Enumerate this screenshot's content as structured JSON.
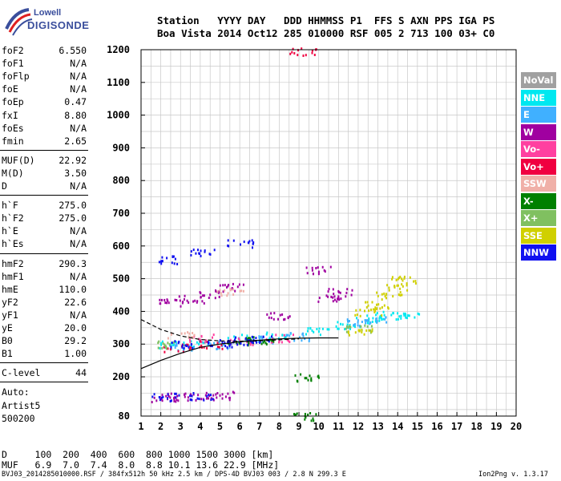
{
  "logo": {
    "line1": "Lowell",
    "line2": "DIGISONDE"
  },
  "header": {
    "row1": "Station   YYYY DAY   DDD HHMMSS P1  FFS S AXN PPS IGA PS",
    "row2": "Boa Vista 2014 Oct12 285 010000 RSF 005 2 713 100 03+ C0"
  },
  "params": [
    {
      "label": "foF2",
      "value": "6.550"
    },
    {
      "label": "foF1",
      "value": "N/A"
    },
    {
      "label": "foFlp",
      "value": "N/A"
    },
    {
      "label": "foE",
      "value": "N/A"
    },
    {
      "label": "foEp",
      "value": "0.47"
    },
    {
      "label": "fxI",
      "value": "8.80"
    },
    {
      "label": "foEs",
      "value": "N/A"
    },
    {
      "label": "fmin",
      "value": "2.65"
    },
    {
      "label": "MUF(D)",
      "value": "22.92"
    },
    {
      "label": "M(D)",
      "value": "3.50"
    },
    {
      "label": "D",
      "value": "N/A"
    },
    {
      "label": "h`F",
      "value": "275.0"
    },
    {
      "label": "h`F2",
      "value": "275.0"
    },
    {
      "label": "h`E",
      "value": "N/A"
    },
    {
      "label": "h`Es",
      "value": "N/A"
    },
    {
      "label": "hmF2",
      "value": "290.3"
    },
    {
      "label": "hmF1",
      "value": "N/A"
    },
    {
      "label": "hmE",
      "value": "110.0"
    },
    {
      "label": "yF2",
      "value": "22.6"
    },
    {
      "label": "yF1",
      "value": "N/A"
    },
    {
      "label": "yE",
      "value": "20.0"
    },
    {
      "label": "B0",
      "value": "29.2"
    },
    {
      "label": "B1",
      "value": "1.00"
    },
    {
      "label": "C-level",
      "value": "44"
    }
  ],
  "auto": {
    "line1": "Auto:",
    "line2": "Artist5",
    "line3": "500200"
  },
  "legend": [
    {
      "label": "NoVal",
      "color": "#a0a0a0"
    },
    {
      "label": "NNE",
      "color": "#00e8f0"
    },
    {
      "label": "E",
      "color": "#40b0ff"
    },
    {
      "label": "W",
      "color": "#a000a0"
    },
    {
      "label": "Vo-",
      "color": "#ff40a0"
    },
    {
      "label": "Vo+",
      "color": "#f00040"
    },
    {
      "label": "SSW",
      "color": "#f0b0a8"
    },
    {
      "label": "X-",
      "color": "#008000"
    },
    {
      "label": "X+",
      "color": "#80c060"
    },
    {
      "label": "SSE",
      "color": "#d0d000"
    },
    {
      "label": "NNW",
      "color": "#1010f0"
    }
  ],
  "bottom": {
    "d_row": "D     100  200  400  600  800 1000 1500 3000 [km]",
    "muf_row": "MUF   6.9  7.0  7.4  8.0  8.8 10.1 13.6 22.9 [MHz]",
    "footer_left": "BVJ03_2014285010000.RSF / 384fx512h 50 kHz 2.5 km / DPS-4D BVJ03 003 / 2.8 N 299.3 E",
    "footer_right": "Ion2Png v. 1.3.17"
  },
  "chart_data": {
    "type": "scatter",
    "title": "",
    "xlabel": "",
    "ylabel": "",
    "xlim": [
      1,
      20
    ],
    "ylim": [
      80,
      1200
    ],
    "x_ticks": [
      1,
      2,
      3,
      4,
      5,
      6,
      7,
      8,
      9,
      10,
      11,
      12,
      13,
      14,
      15,
      16,
      17,
      18,
      19,
      20
    ],
    "y_ticks": [
      80,
      200,
      300,
      400,
      500,
      600,
      700,
      800,
      900,
      1000,
      1100,
      1200
    ],
    "grid": true,
    "series": [
      {
        "name": "NNE",
        "color": "#00e8f0",
        "points": [
          [
            2.5,
            300
          ],
          [
            4,
            305
          ],
          [
            6,
            320
          ],
          [
            8,
            330
          ],
          [
            10,
            340
          ],
          [
            11.5,
            360
          ],
          [
            12.5,
            380
          ],
          [
            13.5,
            390
          ],
          [
            14.5,
            385
          ]
        ]
      },
      {
        "name": "E",
        "color": "#40b0ff",
        "points": [
          [
            3,
            295
          ],
          [
            5,
            300
          ],
          [
            7,
            315
          ],
          [
            9,
            325
          ],
          [
            12,
            370
          ],
          [
            13,
            375
          ]
        ]
      },
      {
        "name": "W",
        "color": "#a000a0",
        "points": [
          [
            2.2,
            138
          ],
          [
            3,
            140
          ],
          [
            4,
            142
          ],
          [
            5,
            145
          ],
          [
            2.5,
            430
          ],
          [
            3.5,
            440
          ],
          [
            4.5,
            455
          ],
          [
            5.5,
            475
          ],
          [
            8,
            390
          ],
          [
            10.5,
            440
          ],
          [
            11,
            460
          ],
          [
            10,
            530
          ]
        ]
      },
      {
        "name": "Vo-",
        "color": "#ff40a0",
        "points": [
          [
            4,
            320
          ],
          [
            6,
            310
          ],
          [
            8,
            320
          ]
        ]
      },
      {
        "name": "Vo+",
        "color": "#f00040",
        "points": [
          [
            2.8,
            290
          ],
          [
            4.5,
            300
          ],
          [
            9.2,
            1195
          ]
        ]
      },
      {
        "name": "SSW",
        "color": "#f0b0a8",
        "points": [
          [
            3,
            330
          ],
          [
            5.5,
            460
          ]
        ]
      },
      {
        "name": "X-",
        "color": "#008000",
        "points": [
          [
            9.3,
            200
          ],
          [
            9.3,
            80
          ],
          [
            6,
            310
          ],
          [
            7,
            315
          ]
        ]
      },
      {
        "name": "X+",
        "color": "#80c060",
        "points": [
          [
            2.5,
            300
          ],
          [
            12,
            350
          ]
        ]
      },
      {
        "name": "SSE",
        "color": "#d0d000",
        "points": [
          [
            12.5,
            400
          ],
          [
            13,
            420
          ],
          [
            13.5,
            450
          ],
          [
            14,
            480
          ],
          [
            14.2,
            500
          ],
          [
            12,
            340
          ]
        ]
      },
      {
        "name": "NNW",
        "color": "#1010f0",
        "points": [
          [
            2.5,
            560
          ],
          [
            4,
            580
          ],
          [
            6,
            610
          ],
          [
            3,
            300
          ],
          [
            5,
            305
          ],
          [
            7,
            315
          ],
          [
            2.2,
            140
          ],
          [
            4,
            143
          ],
          [
            6,
            313
          ]
        ]
      }
    ],
    "model_curves": [
      {
        "name": "fit-solid",
        "color": "#000000",
        "style": "solid",
        "points": [
          [
            1,
            225
          ],
          [
            2,
            250
          ],
          [
            3,
            272
          ],
          [
            4,
            290
          ],
          [
            5,
            300
          ],
          [
            6,
            307
          ],
          [
            7,
            312
          ],
          [
            8,
            316
          ],
          [
            9,
            318
          ],
          [
            10,
            319
          ],
          [
            11,
            319
          ]
        ]
      },
      {
        "name": "fit-dashed",
        "color": "#000000",
        "style": "dashed",
        "points": [
          [
            1,
            375
          ],
          [
            2,
            345
          ],
          [
            3,
            325
          ],
          [
            4,
            314
          ],
          [
            5,
            310
          ],
          [
            6,
            309
          ],
          [
            7,
            310
          ],
          [
            8,
            313
          ],
          [
            9,
            316
          ]
        ]
      }
    ]
  }
}
